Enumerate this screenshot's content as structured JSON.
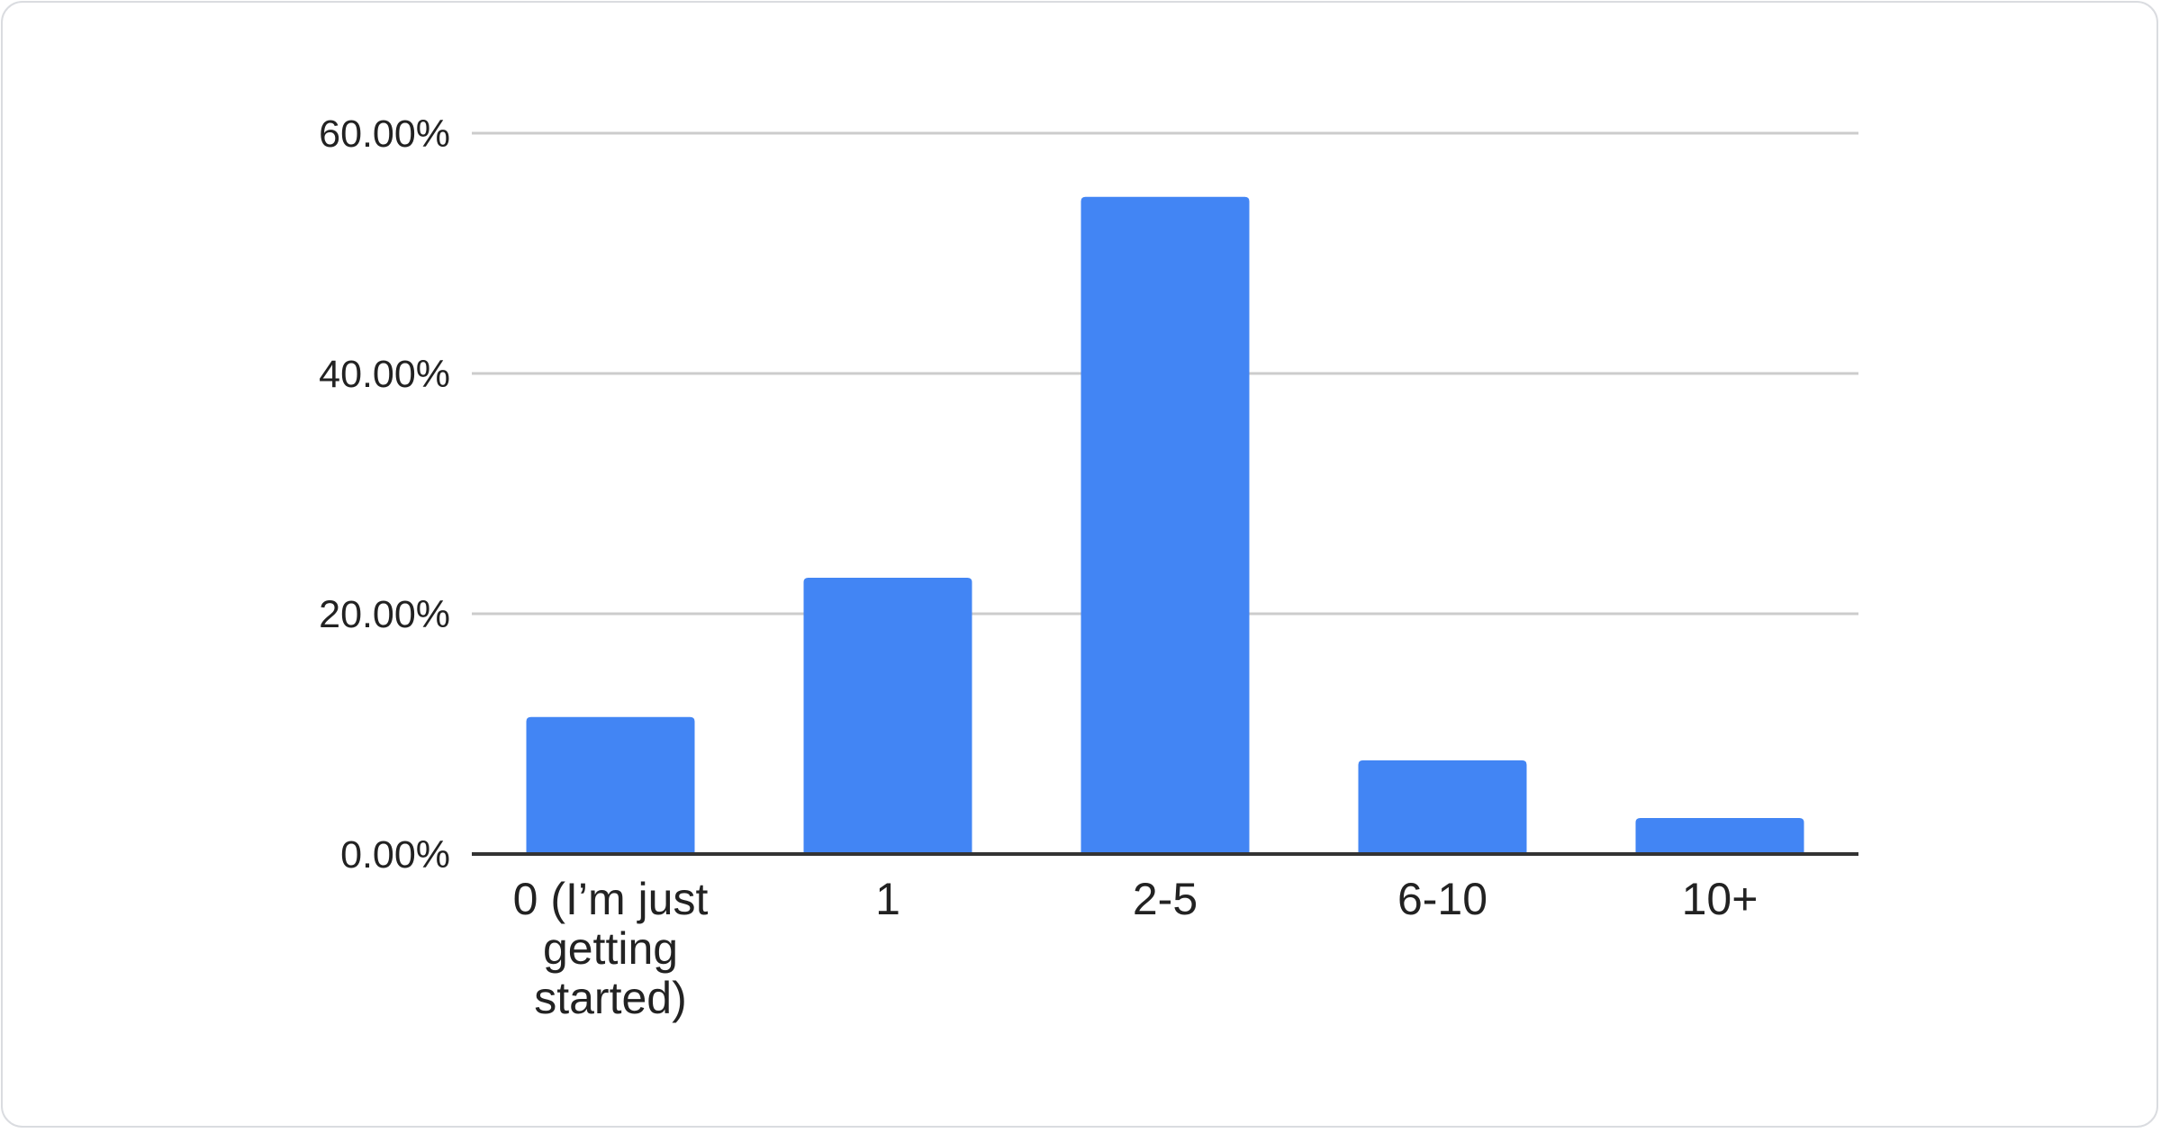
{
  "chart_data": {
    "type": "bar",
    "title": "",
    "xlabel": "",
    "ylabel": "",
    "categories": [
      [
        "0 (I’m just",
        "getting",
        "started)"
      ],
      [
        "1"
      ],
      [
        "2-5"
      ],
      [
        "6-10"
      ],
      [
        "10+"
      ]
    ],
    "values": [
      11.4,
      23.0,
      54.7,
      7.8,
      3.0
    ],
    "ylim": [
      0,
      60
    ],
    "yticks": [
      0,
      20,
      40,
      60
    ],
    "ytick_labels": [
      "0.00%",
      "20.00%",
      "40.00%",
      "60.00%"
    ],
    "grid": true,
    "legend": "none",
    "colors": {
      "bar": "#4285f4",
      "grid": "#cccccc",
      "axis": "#333333",
      "text": "#222222"
    }
  }
}
